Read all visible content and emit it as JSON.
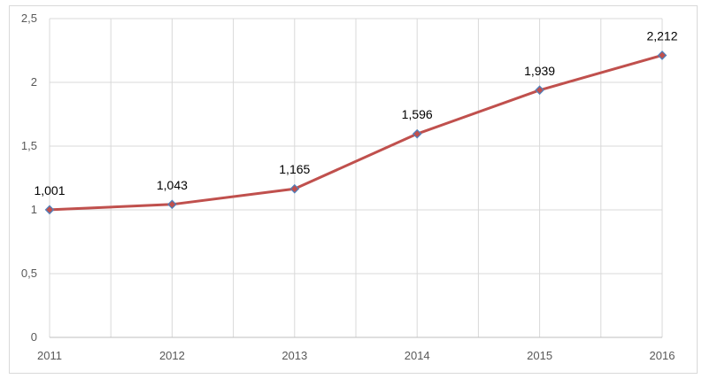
{
  "caption": "",
  "chart_data": {
    "type": "line",
    "title": "",
    "xlabel": "",
    "ylabel": "",
    "categories": [
      "2011",
      "2012",
      "2013",
      "2014",
      "2015",
      "2016"
    ],
    "series": [
      {
        "values": [
          1.001,
          1.043,
          1.165,
          1.596,
          1.939,
          2.212
        ],
        "data_labels": [
          "1,001",
          "1,043",
          "1,165",
          "1,596",
          "1,939",
          "2,212"
        ],
        "color": "#c0504d",
        "marker_color": "#4f81bd",
        "marker": "diamond"
      }
    ],
    "ylim": [
      0,
      2.5
    ],
    "yticks": [
      0,
      0.5,
      1,
      1.5,
      2,
      2.5
    ],
    "ytick_labels": [
      "0",
      "0,5",
      "1",
      "1,5",
      "2",
      "2,5"
    ],
    "grid": true,
    "legend": "none"
  }
}
